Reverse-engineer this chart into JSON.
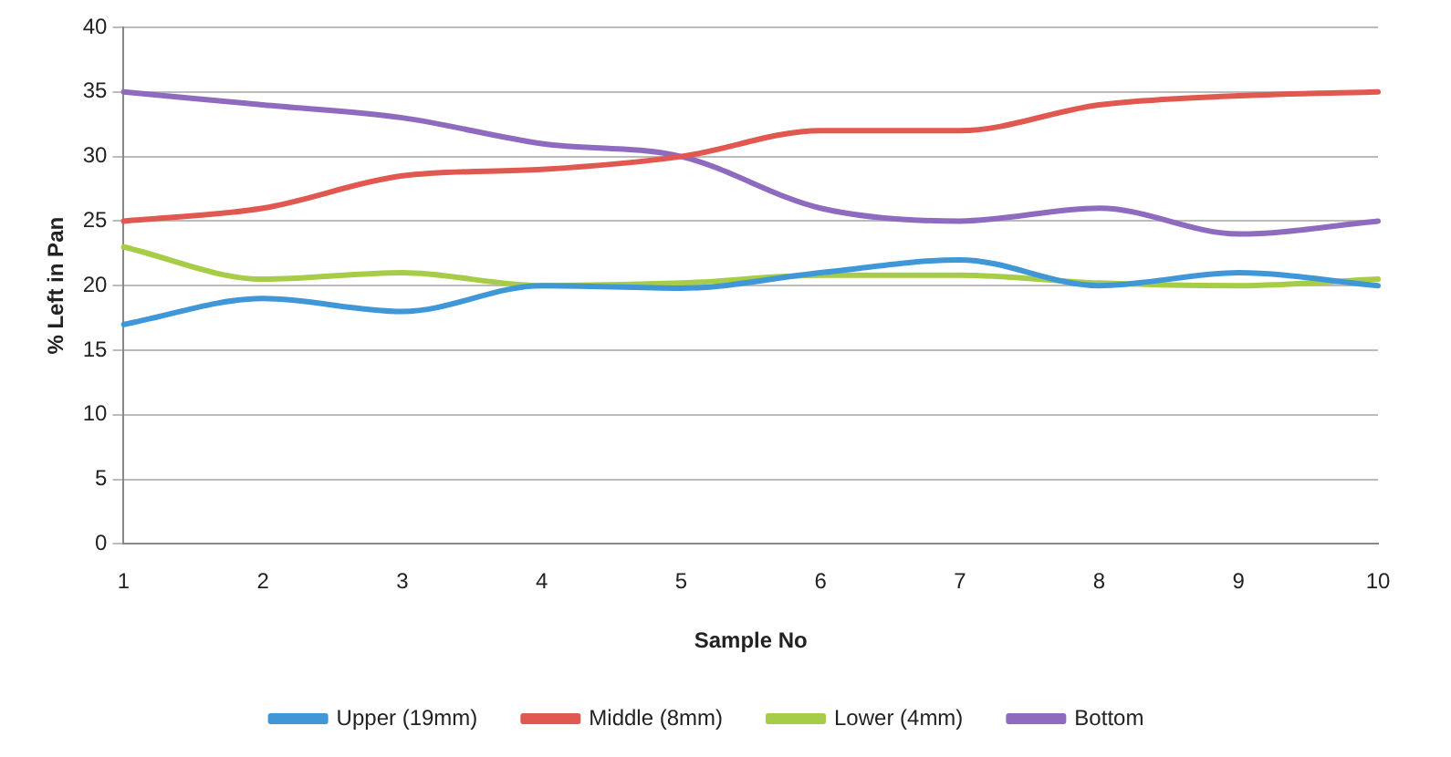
{
  "chart_data": {
    "type": "line",
    "xlabel": "Sample No",
    "ylabel": "% Left in Pan",
    "categories": [
      "1",
      "2",
      "3",
      "4",
      "5",
      "6",
      "7",
      "8",
      "9",
      "10"
    ],
    "series": [
      {
        "name": "Upper (19mm)",
        "color": "#3f97d8",
        "values": [
          17,
          19,
          18,
          20,
          19.8,
          21,
          22,
          20,
          21,
          20
        ]
      },
      {
        "name": "Middle (8mm)",
        "color": "#e0584f",
        "values": [
          25,
          26,
          28.5,
          29,
          30,
          32,
          32,
          34,
          34.7,
          35
        ]
      },
      {
        "name": "Lower (4mm)",
        "color": "#a6cc48",
        "values": [
          23,
          20.5,
          21,
          20,
          20.2,
          20.8,
          20.8,
          20.2,
          20,
          20.5
        ]
      },
      {
        "name": "Bottom",
        "color": "#8e6bbf",
        "values": [
          35,
          34,
          33,
          31,
          30,
          26,
          25,
          26,
          24,
          25
        ]
      }
    ],
    "ylim": [
      0,
      40
    ],
    "yticks": [
      0,
      5,
      10,
      15,
      20,
      25,
      30,
      35,
      40
    ],
    "grid": "y",
    "legend": "bottom",
    "marker": "none",
    "line_style": "solid"
  }
}
